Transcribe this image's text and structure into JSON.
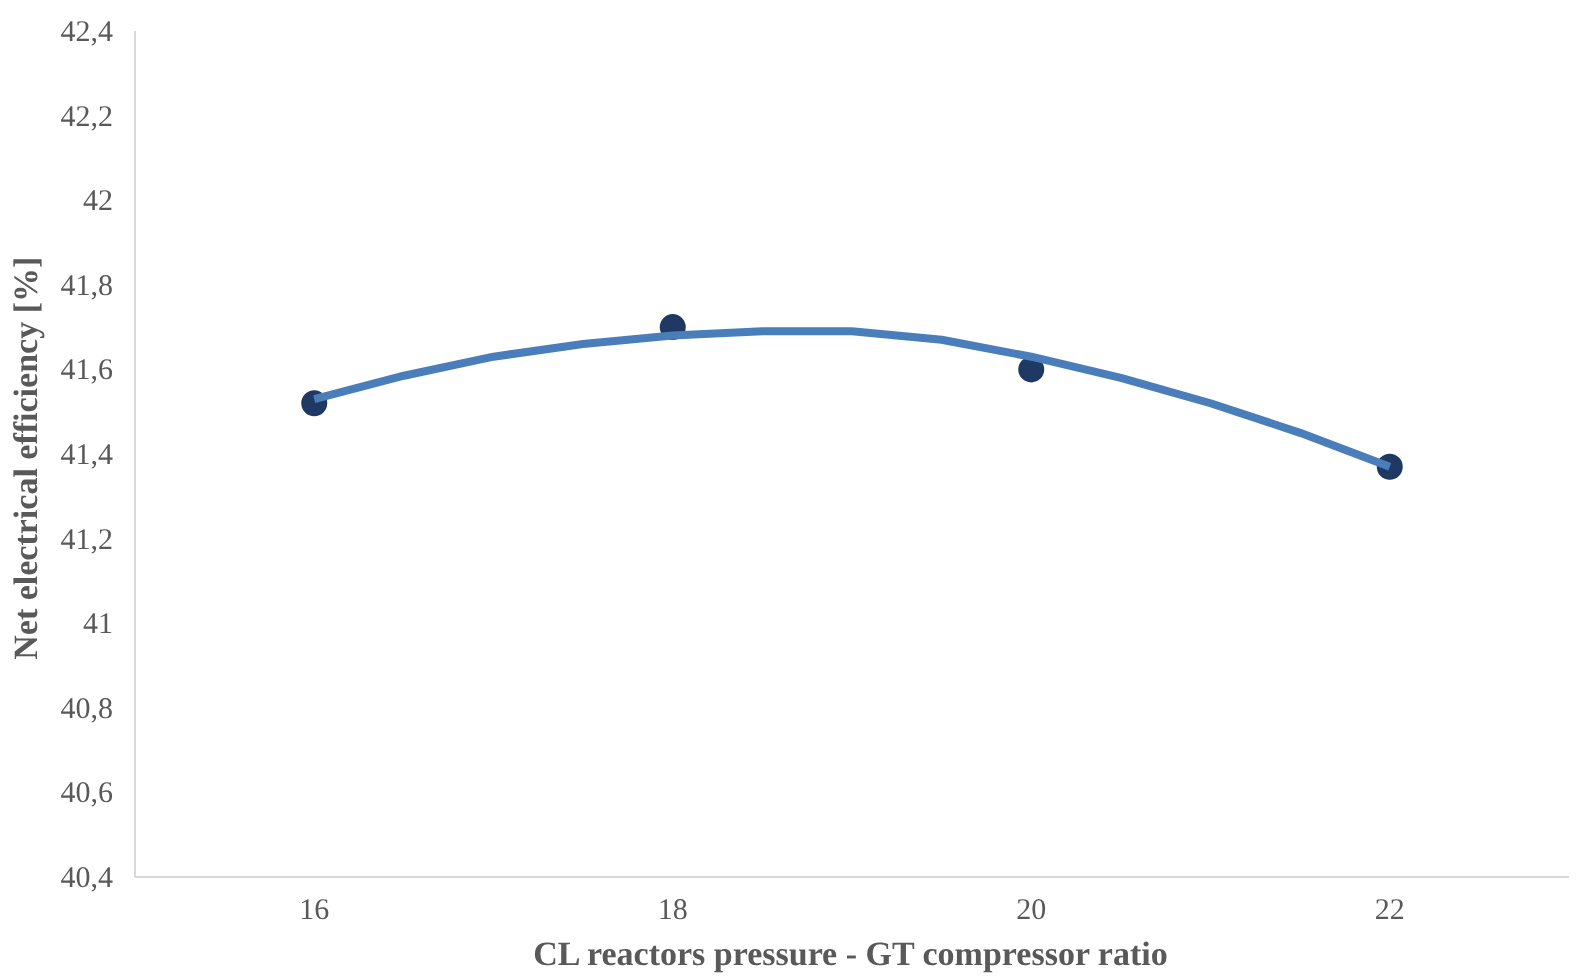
{
  "chart_data": {
    "type": "scatter",
    "xlabel": "CL reactors pressure - GT compressor ratio",
    "ylabel": "Net electrical efficiency  [%]",
    "x": [
      16,
      18,
      20,
      22
    ],
    "series": [
      {
        "color": "#1f3864",
        "values": [
          41.52,
          41.7,
          41.6,
          41.37
        ],
        "marker": "circle"
      },
      {
        "type": "line",
        "color": "#4a7ebb",
        "x": [
          16,
          16.5,
          17,
          17.5,
          18,
          18.5,
          19,
          19.5,
          20,
          20.5,
          21,
          21.5,
          22
        ],
        "values": [
          41.53,
          41.585,
          41.63,
          41.66,
          41.68,
          41.69,
          41.69,
          41.67,
          41.63,
          41.58,
          41.52,
          41.45,
          41.37
        ],
        "marker": "none",
        "line_style": "solid"
      }
    ],
    "xlim": [
      15,
      23
    ],
    "xticks": [
      16,
      18,
      20,
      22
    ],
    "ylim": [
      40.4,
      42.4
    ],
    "yticks": [
      {
        "value": 40.4,
        "label": "40,4"
      },
      {
        "value": 40.6,
        "label": "40,6"
      },
      {
        "value": 40.8,
        "label": "40,8"
      },
      41,
      {
        "value": 41.2,
        "label": "41,2"
      },
      {
        "value": 41.4,
        "label": "41,4"
      },
      {
        "value": 41.6,
        "label": "41,6"
      },
      {
        "value": 41.8,
        "label": "41,8"
      },
      42,
      {
        "value": 42.2,
        "label": "42,2"
      },
      {
        "value": 42.4,
        "label": "42,4"
      }
    ],
    "grid": false
  }
}
